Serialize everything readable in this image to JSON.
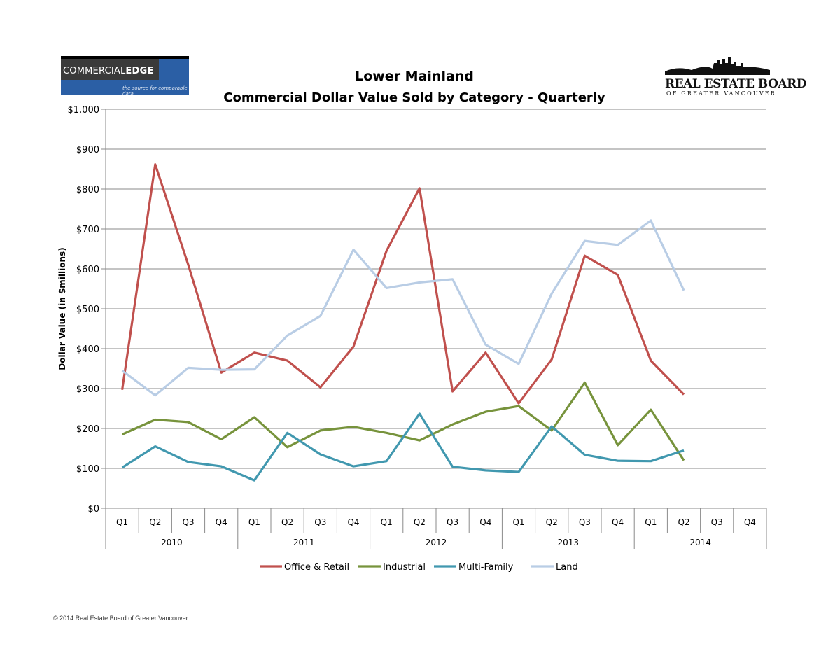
{
  "logos": {
    "left": {
      "name_regular": "COMMERCIAL",
      "name_bold": "EDGE",
      "tagline": "the source for comparable data"
    },
    "right": {
      "name": "REAL ESTATE BOARD",
      "sub": "OF GREATER VANCOUVER"
    }
  },
  "footer": {
    "copyright": "© 2014 Real Estate Board of Greater Vancouver"
  },
  "chart_data": {
    "type": "line",
    "title": "Lower Mainland",
    "subtitle": "Commercial Dollar Value Sold by Category - Quarterly",
    "ylabel": "Dollar Value (in $millions)",
    "xlabel": "",
    "ylim": [
      0,
      1000
    ],
    "yticks": [
      0,
      100,
      200,
      300,
      400,
      500,
      600,
      700,
      800,
      900,
      1000
    ],
    "ytick_labels": [
      "$0",
      "$100",
      "$200",
      "$300",
      "$400",
      "$500",
      "$600",
      "$700",
      "$800",
      "$900",
      "$1,000"
    ],
    "grid": true,
    "legend": "bottom",
    "categories": [
      "Q1",
      "Q2",
      "Q3",
      "Q4",
      "Q1",
      "Q2",
      "Q3",
      "Q4",
      "Q1",
      "Q2",
      "Q3",
      "Q4",
      "Q1",
      "Q2",
      "Q3",
      "Q4",
      "Q1",
      "Q2",
      "Q3",
      "Q4"
    ],
    "groups": [
      {
        "label": "2010",
        "count": 4
      },
      {
        "label": "2011",
        "count": 4
      },
      {
        "label": "2012",
        "count": 4
      },
      {
        "label": "2013",
        "count": 4
      },
      {
        "label": "2014",
        "count": 4
      }
    ],
    "series": [
      {
        "name": "Office & Retail",
        "color": "#c0504d",
        "values": [
          297,
          862,
          610,
          340,
          390,
          370,
          303,
          405,
          645,
          802,
          293,
          390,
          263,
          373,
          633,
          585,
          370,
          285,
          null,
          null
        ]
      },
      {
        "name": "Industrial",
        "color": "#77933c",
        "values": [
          185,
          222,
          216,
          173,
          228,
          153,
          195,
          204,
          189,
          170,
          210,
          242,
          256,
          195,
          315,
          158,
          247,
          120,
          null,
          null
        ]
      },
      {
        "name": "Multi-Family",
        "color": "#4198af",
        "values": [
          102,
          155,
          116,
          105,
          70,
          189,
          135,
          105,
          118,
          237,
          104,
          95,
          91,
          205,
          134,
          119,
          118,
          145,
          null,
          null
        ]
      },
      {
        "name": "Land",
        "color": "#b9cde5",
        "values": [
          345,
          283,
          352,
          347,
          348,
          433,
          482,
          648,
          552,
          566,
          574,
          410,
          362,
          538,
          670,
          660,
          721,
          546,
          null,
          null
        ]
      }
    ]
  }
}
